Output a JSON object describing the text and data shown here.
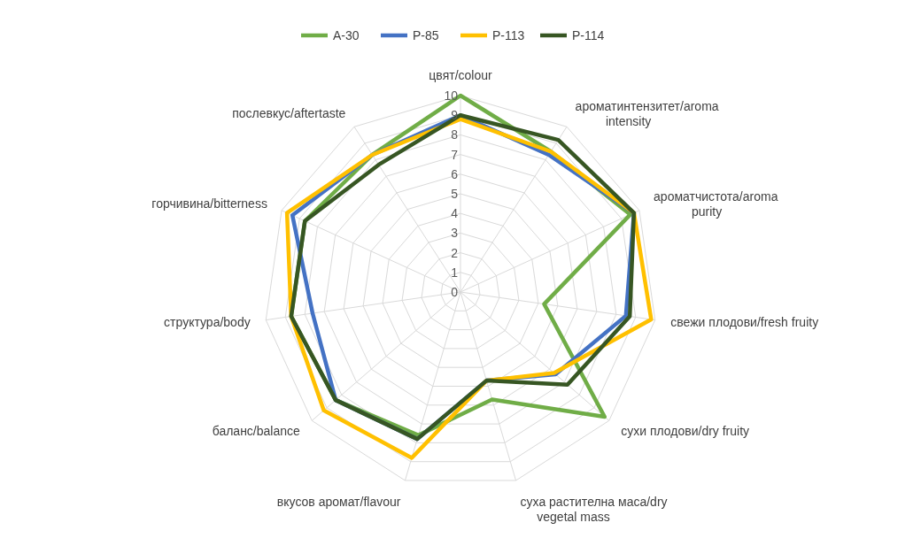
{
  "chart_data": {
    "type": "radar",
    "categories": [
      "цвят/colour",
      "ароматинтензитет/aroma intensity",
      "ароматчистота/aroma purity",
      "свежи плодови/fresh fruity",
      "сухи плодови/dry fruity",
      "суха растителна маса/dry vegetal mass",
      "вкусов аромат/flavour",
      "баланс/balance",
      "структура/body",
      "горчивина/bitterness",
      "послевкус/aftertaste"
    ],
    "series": [
      {
        "name": "A-30",
        "color": "#70ad47",
        "values": [
          10,
          8.5,
          9.5,
          4.3,
          9.7,
          5.7,
          7.6,
          8.4,
          8.7,
          8.7,
          8.3
        ]
      },
      {
        "name": "P-85",
        "color": "#4472c4",
        "values": [
          9,
          8.3,
          9.7,
          8.5,
          6.4,
          4.7,
          7.8,
          8.4,
          7.6,
          9.4,
          8.3
        ]
      },
      {
        "name": "P-113",
        "color": "#ffc000",
        "values": [
          8.8,
          8.5,
          9.7,
          9.8,
          6.3,
          4.7,
          8.8,
          9.2,
          8.7,
          9.7,
          8.3
        ]
      },
      {
        "name": "P-114",
        "color": "#375623",
        "values": [
          9,
          9.2,
          9.7,
          8.7,
          7.2,
          4.7,
          7.8,
          8.4,
          8.7,
          8.7,
          7.7
        ]
      }
    ],
    "ylim": [
      0,
      10
    ],
    "yticks": [
      0,
      1,
      2,
      3,
      4,
      5,
      6,
      7,
      8,
      9,
      10
    ],
    "grid": true,
    "legend": "top"
  }
}
